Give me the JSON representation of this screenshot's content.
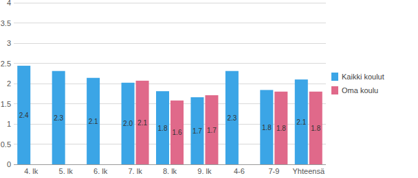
{
  "chart_data": {
    "type": "bar",
    "categories": [
      "4. lk",
      "5. lk",
      "6. lk",
      "7. lk",
      "8. lk",
      "9. lk",
      "4-6",
      "7-9",
      "Yhteensä"
    ],
    "series": [
      {
        "name": "Kaikki koulut",
        "color": "#3ba5e6",
        "values": [
          2.44,
          2.31,
          2.14,
          2.02,
          1.81,
          1.66,
          2.31,
          1.84,
          2.1
        ],
        "value_labels": [
          "2.4",
          "2.3",
          "2.1",
          "2.0",
          "1.8",
          "1.7",
          "2.3",
          "1.8",
          "2.1"
        ]
      },
      {
        "name": "Oma koulu",
        "color": "#e0698a",
        "values": [
          null,
          null,
          null,
          2.07,
          1.58,
          1.71,
          null,
          1.8,
          1.8
        ],
        "value_labels": [
          null,
          null,
          null,
          "2.1",
          "1.6",
          "1.7",
          null,
          "1.8",
          "1.8"
        ]
      }
    ],
    "ylim": [
      0,
      4
    ],
    "yticks": [
      0,
      0.5,
      1,
      1.5,
      2,
      2.5,
      3,
      3.5,
      4
    ],
    "grid": true,
    "legend": "right",
    "data_labels": true
  }
}
